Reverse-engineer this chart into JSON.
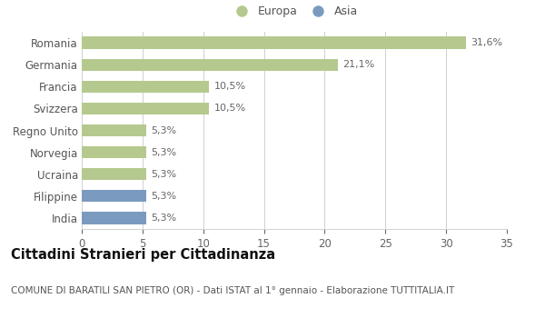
{
  "categories": [
    "Romania",
    "Germania",
    "Francia",
    "Svizzera",
    "Regno Unito",
    "Norvegia",
    "Ucraina",
    "Filippine",
    "India"
  ],
  "values": [
    31.6,
    21.1,
    10.5,
    10.5,
    5.3,
    5.3,
    5.3,
    5.3,
    5.3
  ],
  "labels": [
    "31,6%",
    "21,1%",
    "10,5%",
    "10,5%",
    "5,3%",
    "5,3%",
    "5,3%",
    "5,3%",
    "5,3%"
  ],
  "colors": [
    "#b5c98e",
    "#b5c98e",
    "#b5c98e",
    "#b5c98e",
    "#b5c98e",
    "#b5c98e",
    "#b5c98e",
    "#7b9abf",
    "#7b9abf"
  ],
  "europa_color": "#b5c98e",
  "asia_color": "#7b9abf",
  "xlim": [
    0,
    35
  ],
  "xticks": [
    0,
    5,
    10,
    15,
    20,
    25,
    30,
    35
  ],
  "title": "Cittadini Stranieri per Cittadinanza",
  "subtitle": "COMUNE DI BARATILI SAN PIETRO (OR) - Dati ISTAT al 1° gennaio - Elaborazione TUTTITALIA.IT",
  "legend_europa": "Europa",
  "legend_asia": "Asia",
  "background_color": "#ffffff",
  "grid_color": "#d0d0d0",
  "bar_height": 0.55,
  "label_fontsize": 8,
  "tick_label_fontsize": 8.5,
  "title_fontsize": 10.5,
  "subtitle_fontsize": 7.5
}
